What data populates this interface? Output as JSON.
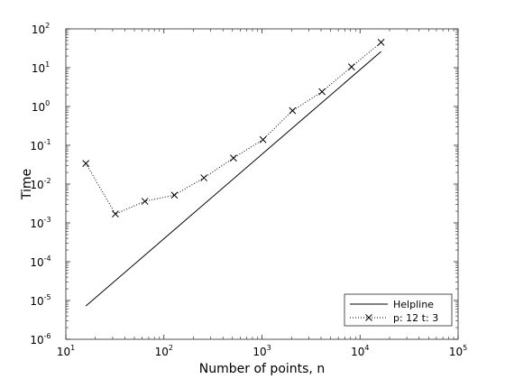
{
  "chart_data": {
    "type": "line",
    "xscale": "log",
    "yscale": "log",
    "xlim": [
      10,
      100000
    ],
    "ylim": [
      1e-06,
      100
    ],
    "xlabel": "Number of points, n",
    "ylabel": "Time",
    "x_ticks": [
      {
        "base": "10",
        "exp": "1",
        "value": 10
      },
      {
        "base": "10",
        "exp": "2",
        "value": 100
      },
      {
        "base": "10",
        "exp": "3",
        "value": 1000
      },
      {
        "base": "10",
        "exp": "4",
        "value": 10000
      },
      {
        "base": "10",
        "exp": "5",
        "value": 100000
      }
    ],
    "y_ticks": [
      {
        "base": "10",
        "exp": "-6",
        "value": 1e-06
      },
      {
        "base": "10",
        "exp": "-5",
        "value": 1e-05
      },
      {
        "base": "10",
        "exp": "-4",
        "value": 0.0001
      },
      {
        "base": "10",
        "exp": "-3",
        "value": 0.001
      },
      {
        "base": "10",
        "exp": "-2",
        "value": 0.01
      },
      {
        "base": "10",
        "exp": "-1",
        "value": 0.1
      },
      {
        "base": "10",
        "exp": "0",
        "value": 1
      },
      {
        "base": "10",
        "exp": "1",
        "value": 10
      },
      {
        "base": "10",
        "exp": "2",
        "value": 100
      }
    ],
    "grid": false,
    "legend_position": "bottom-right",
    "series": [
      {
        "name": "Helpline",
        "style": "solid",
        "marker": "none",
        "color": "#000000",
        "x": [
          16,
          16384
        ],
        "y": [
          7.2e-06,
          26
        ]
      },
      {
        "name": "p: 12 t: 3",
        "style": "dotted",
        "marker": "x",
        "color": "#000000",
        "x": [
          16,
          32,
          64,
          128,
          256,
          512,
          1024,
          2048,
          4096,
          8192,
          16384
        ],
        "y": [
          0.034,
          0.0017,
          0.0036,
          0.0052,
          0.0145,
          0.047,
          0.14,
          0.78,
          2.4,
          10.5,
          45
        ]
      }
    ]
  }
}
